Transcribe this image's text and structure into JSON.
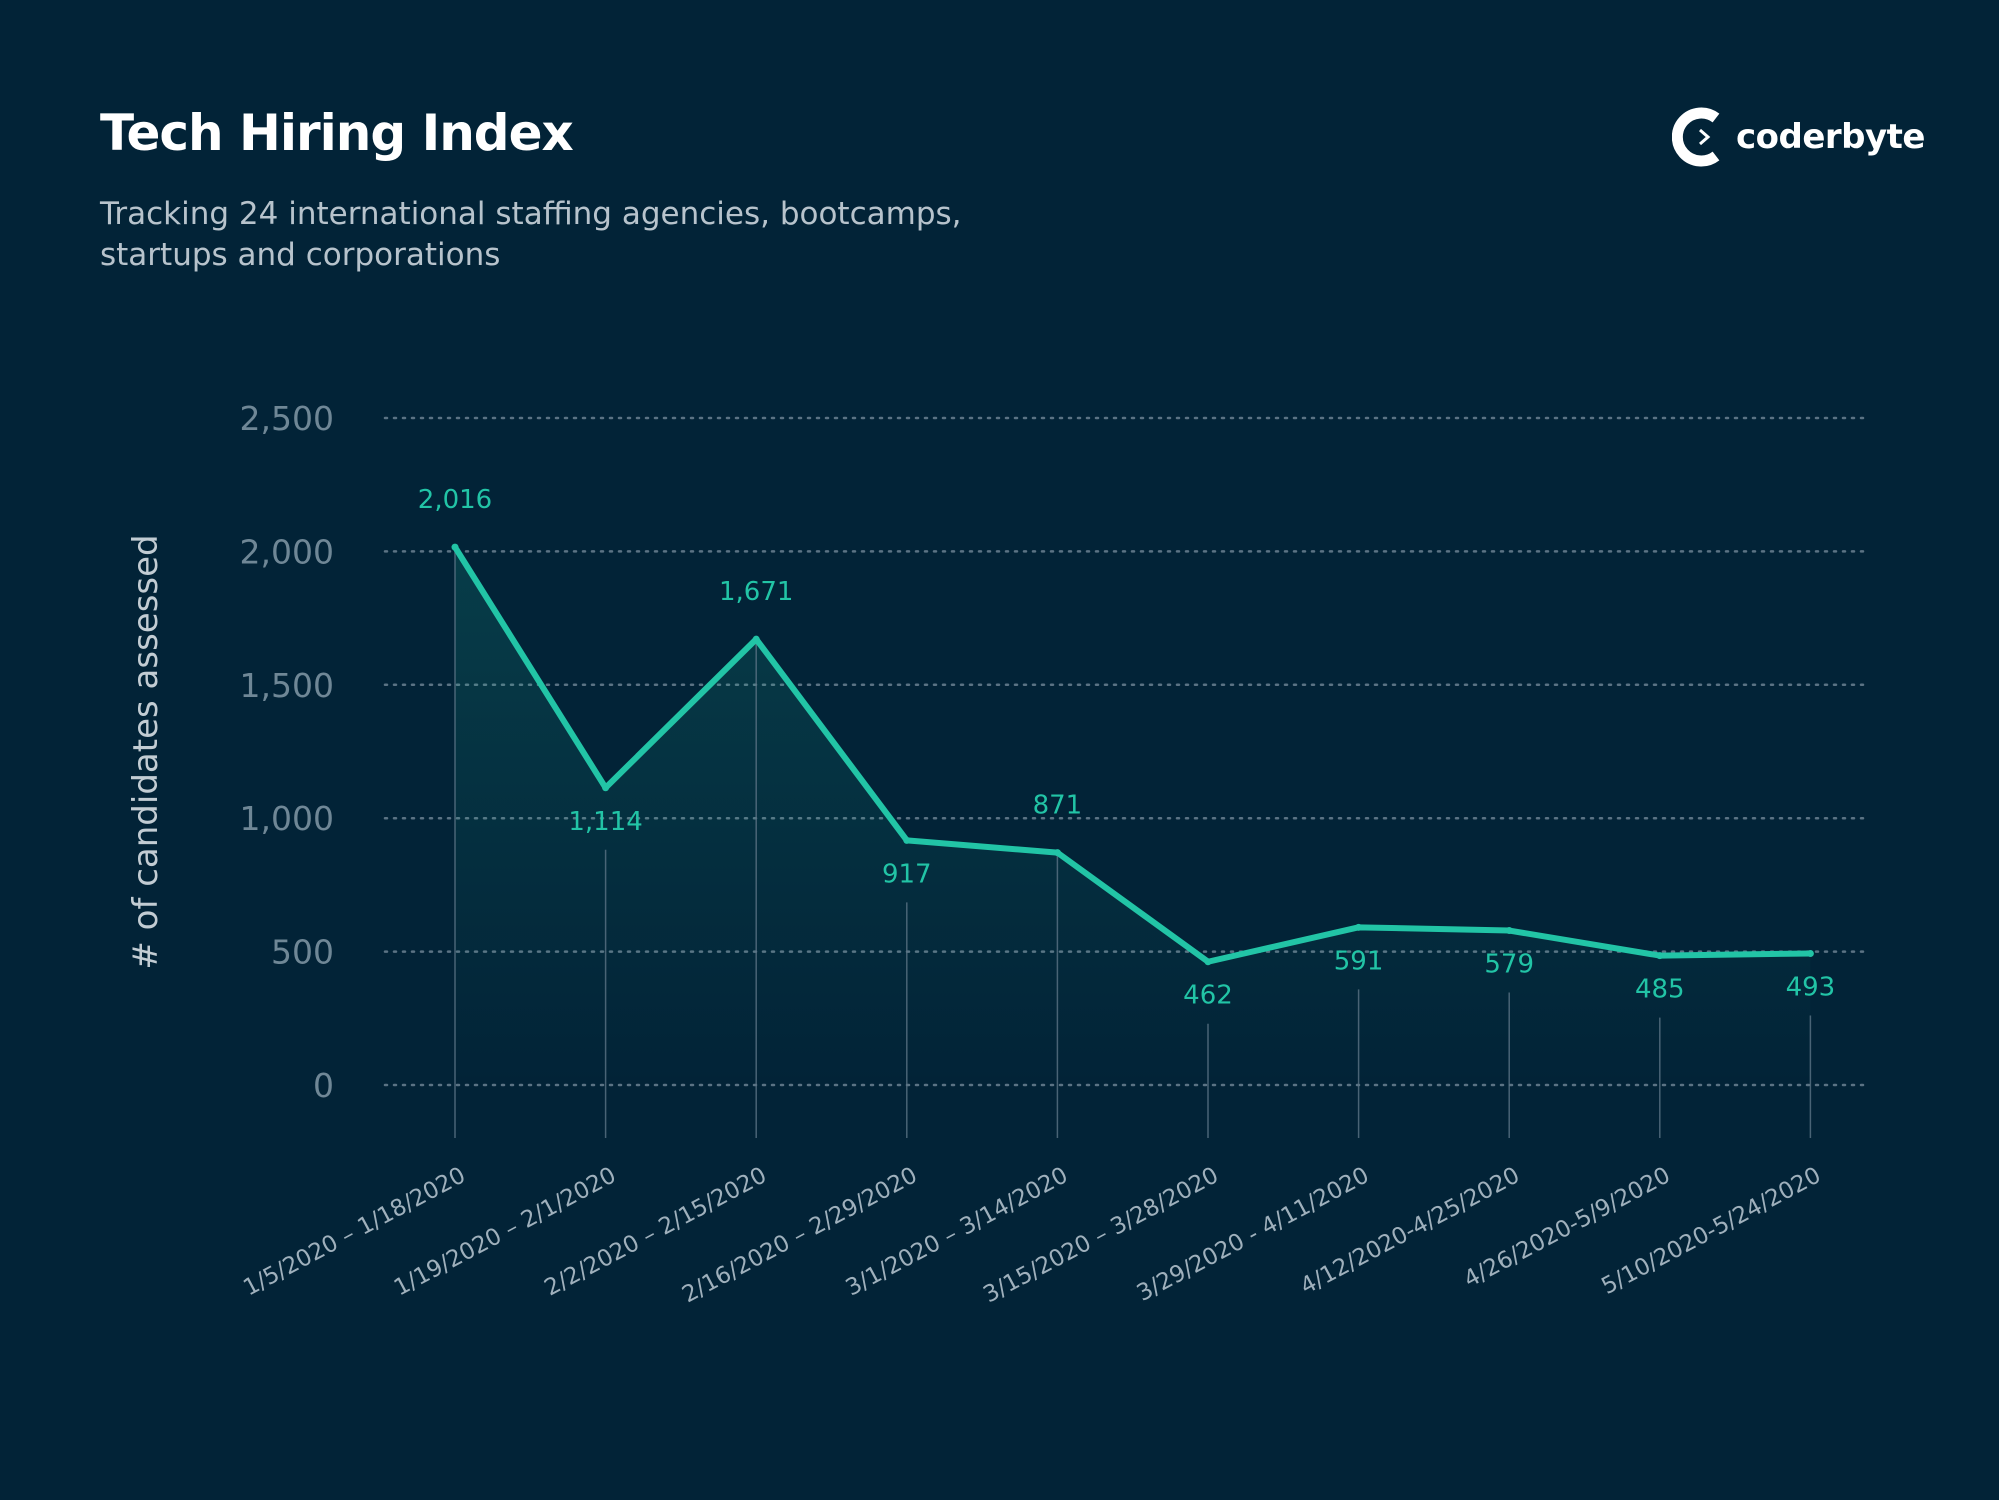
{
  "header": {
    "title": "Tech Hiring Index",
    "subtitle": "Tracking 24 international staffing agencies, bootcamps, startups and corporations"
  },
  "brand": {
    "name": "coderbyte",
    "icon": "coderbyte-logo-icon"
  },
  "colors": {
    "background": "#022337",
    "line": "#22c4a6",
    "grid": "#5b7384"
  },
  "chart_data": {
    "type": "line",
    "title": "Tech Hiring Index",
    "subtitle": "Tracking 24 international staffing agencies, bootcamps, startups and corporations",
    "xlabel": "",
    "ylabel": "# of candidates assessed",
    "ylim": [
      0,
      2500
    ],
    "yticks": [
      0,
      500,
      1000,
      1500,
      2000,
      2500
    ],
    "ytick_labels": [
      "0",
      "500",
      "1,000",
      "1,500",
      "2,000",
      "2,500"
    ],
    "grid": "horizontal-dotted",
    "legend": "none",
    "categories": [
      "1/5/2020 – 1/18/2020",
      "1/19/2020 – 2/1/2020",
      "2/2/2020 – 2/15/2020",
      "2/16/2020 – 2/29/2020",
      "3/1/2020 – 3/14/2020",
      "3/15/2020 – 3/28/2020",
      "3/29/2020 - 4/11/2020",
      "4/12/2020-4/25/2020",
      "4/26/2020-5/9/2020",
      "5/10/2020-5/24/2020"
    ],
    "series": [
      {
        "values": [
          2016,
          1114,
          1671,
          917,
          871,
          462,
          591,
          579,
          485,
          493
        ],
        "data_labels": [
          "2,016",
          "1,114",
          "1,671",
          "917",
          "871",
          "462",
          "591",
          "579",
          "485",
          "493"
        ],
        "shaded_area": true
      }
    ]
  }
}
